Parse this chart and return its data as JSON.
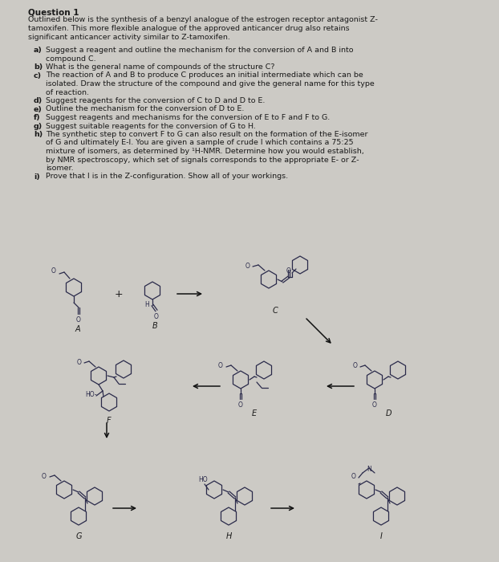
{
  "title": "Question 1",
  "bg_color": "#cccac5",
  "text_color": "#1a1a1a",
  "struct_color": "#2a2a4a",
  "intro_lines": [
    "Outlined below is the synthesis of a benzyl analogue of the estrogen receptor antagonist Z-",
    "tamoxifen. This more flexible analogue of the approved anticancer drug also retains",
    "significant anticancer activity similar to Z-tamoxifen."
  ],
  "qa_lines": [
    [
      "a)",
      "Suggest a reagent and outline the mechanism for the conversion of A and B into"
    ],
    [
      "",
      "compound C."
    ],
    [
      "b)",
      "What is the general name of compounds of the structure C?"
    ],
    [
      "c)",
      "The reaction of A and B to produce C produces an initial intermediate which can be"
    ],
    [
      "",
      "isolated. Draw the structure of the compound and give the general name for this type"
    ],
    [
      "",
      "of reaction."
    ],
    [
      "d)",
      "Suggest reagents for the conversion of C to D and D to E."
    ],
    [
      "e)",
      "Outline the mechanism for the conversion of D to E."
    ],
    [
      "f)",
      "Suggest reagents and mechanisms for the conversion of E to F and F to G."
    ],
    [
      "g)",
      "Suggest suitable reagents for the conversion of G to H."
    ],
    [
      "h)",
      "The synthetic step to convert F to G can also result on the formation of the E-isomer"
    ],
    [
      "",
      "of G and ultimately E-I. You are given a sample of crude I which contains a 75:25"
    ],
    [
      "",
      "mixture of isomers, as determined by ¹H-NMR. Determine how you would establish,"
    ],
    [
      "",
      "by NMR spectroscopy, which set of signals corresponds to the appropriate E- or Z-"
    ],
    [
      "",
      "isomer."
    ],
    [
      "i)",
      "Prove that I is in the Z-configuration. Show all of your workings."
    ]
  ],
  "fig_width": 6.22,
  "fig_height": 7.0,
  "dpi": 100
}
